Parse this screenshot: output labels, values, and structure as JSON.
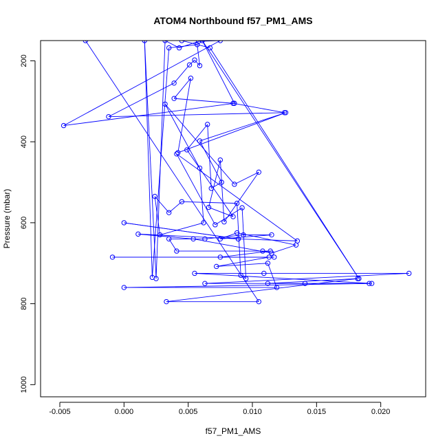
{
  "chart_data": {
    "type": "line",
    "title": "ATOM4 Northbound f57_PM1_AMS",
    "xlabel": "f57_PM1_AMS",
    "ylabel": "Pressure (mbar)",
    "xlim": [
      -0.0065,
      0.0235
    ],
    "ylim": [
      1030,
      150
    ],
    "y_reversed": true,
    "x_ticks": [
      -0.005,
      0.0,
      0.005,
      0.01,
      0.015,
      0.02
    ],
    "x_tick_labels": [
      "-0.005",
      "0.000",
      "0.005",
      "0.010",
      "0.015",
      "0.020"
    ],
    "y_ticks": [
      200,
      400,
      600,
      800,
      1000
    ],
    "y_tick_labels": [
      "200",
      "400",
      "600",
      "800",
      "1000"
    ],
    "line_color": "#0000ff",
    "marker": "open-circle",
    "series": [
      {
        "name": "f57_PM1_AMS",
        "points": [
          [
            -0.003,
            150
          ],
          [
            0.0105,
            795
          ],
          [
            0.0033,
            795
          ],
          [
            0.0182,
            738
          ],
          [
            0.0112,
            750
          ],
          [
            0.0191,
            750
          ],
          [
            0.0141,
            750
          ],
          [
            0.0063,
            750
          ],
          [
            0.0222,
            725
          ],
          [
            0.0109,
            725
          ],
          [
            0.0055,
            725
          ],
          [
            0.0193,
            750
          ],
          [
            0.0,
            760
          ],
          [
            0.0119,
            760
          ],
          [
            0.0112,
            700
          ],
          [
            0.0072,
            708
          ],
          [
            0.0113,
            685
          ],
          [
            -0.0009,
            685
          ],
          [
            0.0117,
            685
          ],
          [
            0.0075,
            685
          ],
          [
            0.0114,
            670
          ],
          [
            0.0108,
            670
          ],
          [
            0.0041,
            670
          ],
          [
            0.0035,
            640
          ],
          [
            0.0063,
            640
          ],
          [
            0.0093,
            630
          ],
          [
            0.0115,
            630
          ],
          [
            0.0075,
            640
          ],
          [
            0.0088,
            625
          ],
          [
            0.0134,
            655
          ],
          [
            0.0115,
            675
          ],
          [
            0.0054,
            640
          ],
          [
            0.0011,
            628
          ],
          [
            0.0089,
            640
          ],
          [
            0.0,
            600
          ],
          [
            0.0089,
            640
          ],
          [
            0.0135,
            645
          ],
          [
            0.0041,
            430
          ],
          [
            0.0071,
            605
          ],
          [
            0.0092,
            563
          ],
          [
            0.0095,
            738
          ],
          [
            0.0091,
            730
          ],
          [
            0.0088,
            552
          ],
          [
            0.0045,
            548
          ],
          [
            0.0035,
            575
          ],
          [
            0.0024,
            535
          ],
          [
            0.0028,
            630
          ],
          [
            0.0062,
            600
          ],
          [
            0.0059,
            465
          ],
          [
            0.0032,
            307
          ],
          [
            0.0086,
            505
          ],
          [
            0.0105,
            475
          ],
          [
            0.0078,
            598
          ],
          [
            0.0075,
            445
          ],
          [
            0.0066,
            562
          ],
          [
            0.0085,
            585
          ],
          [
            0.0049,
            420
          ],
          [
            0.0065,
            357
          ],
          [
            0.0068,
            515
          ],
          [
            0.0076,
            500
          ],
          [
            0.0059,
            398
          ],
          [
            0.0126,
            328
          ],
          [
            0.0042,
            427
          ],
          [
            0.0052,
            243
          ],
          [
            0.0039,
            293
          ],
          [
            0.0085,
            305
          ],
          [
            0.0125,
            328
          ],
          [
            -0.0012,
            338
          ],
          [
            0.0039,
            255
          ],
          [
            0.0051,
            210
          ],
          [
            0.0055,
            198
          ],
          [
            0.0059,
            212
          ],
          [
            0.0057,
            160
          ],
          [
            0.0035,
            168
          ],
          [
            0.0022,
            735
          ],
          [
            0.0016,
            150
          ],
          [
            0.0025,
            738
          ],
          [
            0.0032,
            150
          ],
          [
            0.0043,
            168
          ],
          [
            0.0058,
            152
          ],
          [
            0.0075,
            150
          ],
          [
            -0.0047,
            360
          ],
          [
            0.0086,
            305
          ],
          [
            0.0061,
            150
          ],
          [
            0.0183,
            738
          ],
          [
            0.0067,
            168
          ],
          [
            0.0045,
            150
          ]
        ]
      }
    ]
  }
}
